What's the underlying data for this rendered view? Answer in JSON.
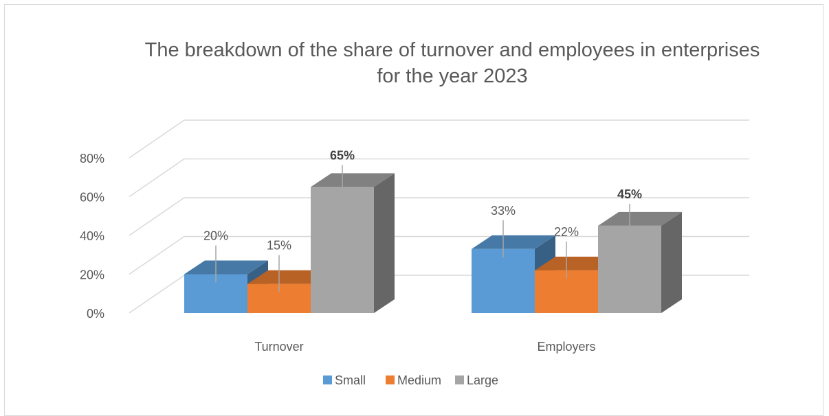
{
  "chart_data": {
    "type": "bar",
    "title_lines": [
      "The breakdown of the share of turnover and employees in enterprises",
      "for the year 2023"
    ],
    "categories": [
      "Turnover",
      "Employers"
    ],
    "series": [
      {
        "name": "Small",
        "values": [
          20,
          33
        ],
        "color": "#5b9bd5",
        "label_bold": false
      },
      {
        "name": "Medium",
        "values": [
          15,
          22
        ],
        "color": "#ed7d31",
        "label_bold": false
      },
      {
        "name": "Large",
        "values": [
          65,
          45
        ],
        "color": "#a5a5a5",
        "label_bold": true
      }
    ],
    "y_ticks": [
      "0%",
      "20%",
      "40%",
      "60%",
      "80%"
    ],
    "ylim": [
      0,
      80
    ],
    "value_suffix": "%",
    "grid": true,
    "legend_position": "bottom",
    "style": "3d-clustered-column"
  }
}
